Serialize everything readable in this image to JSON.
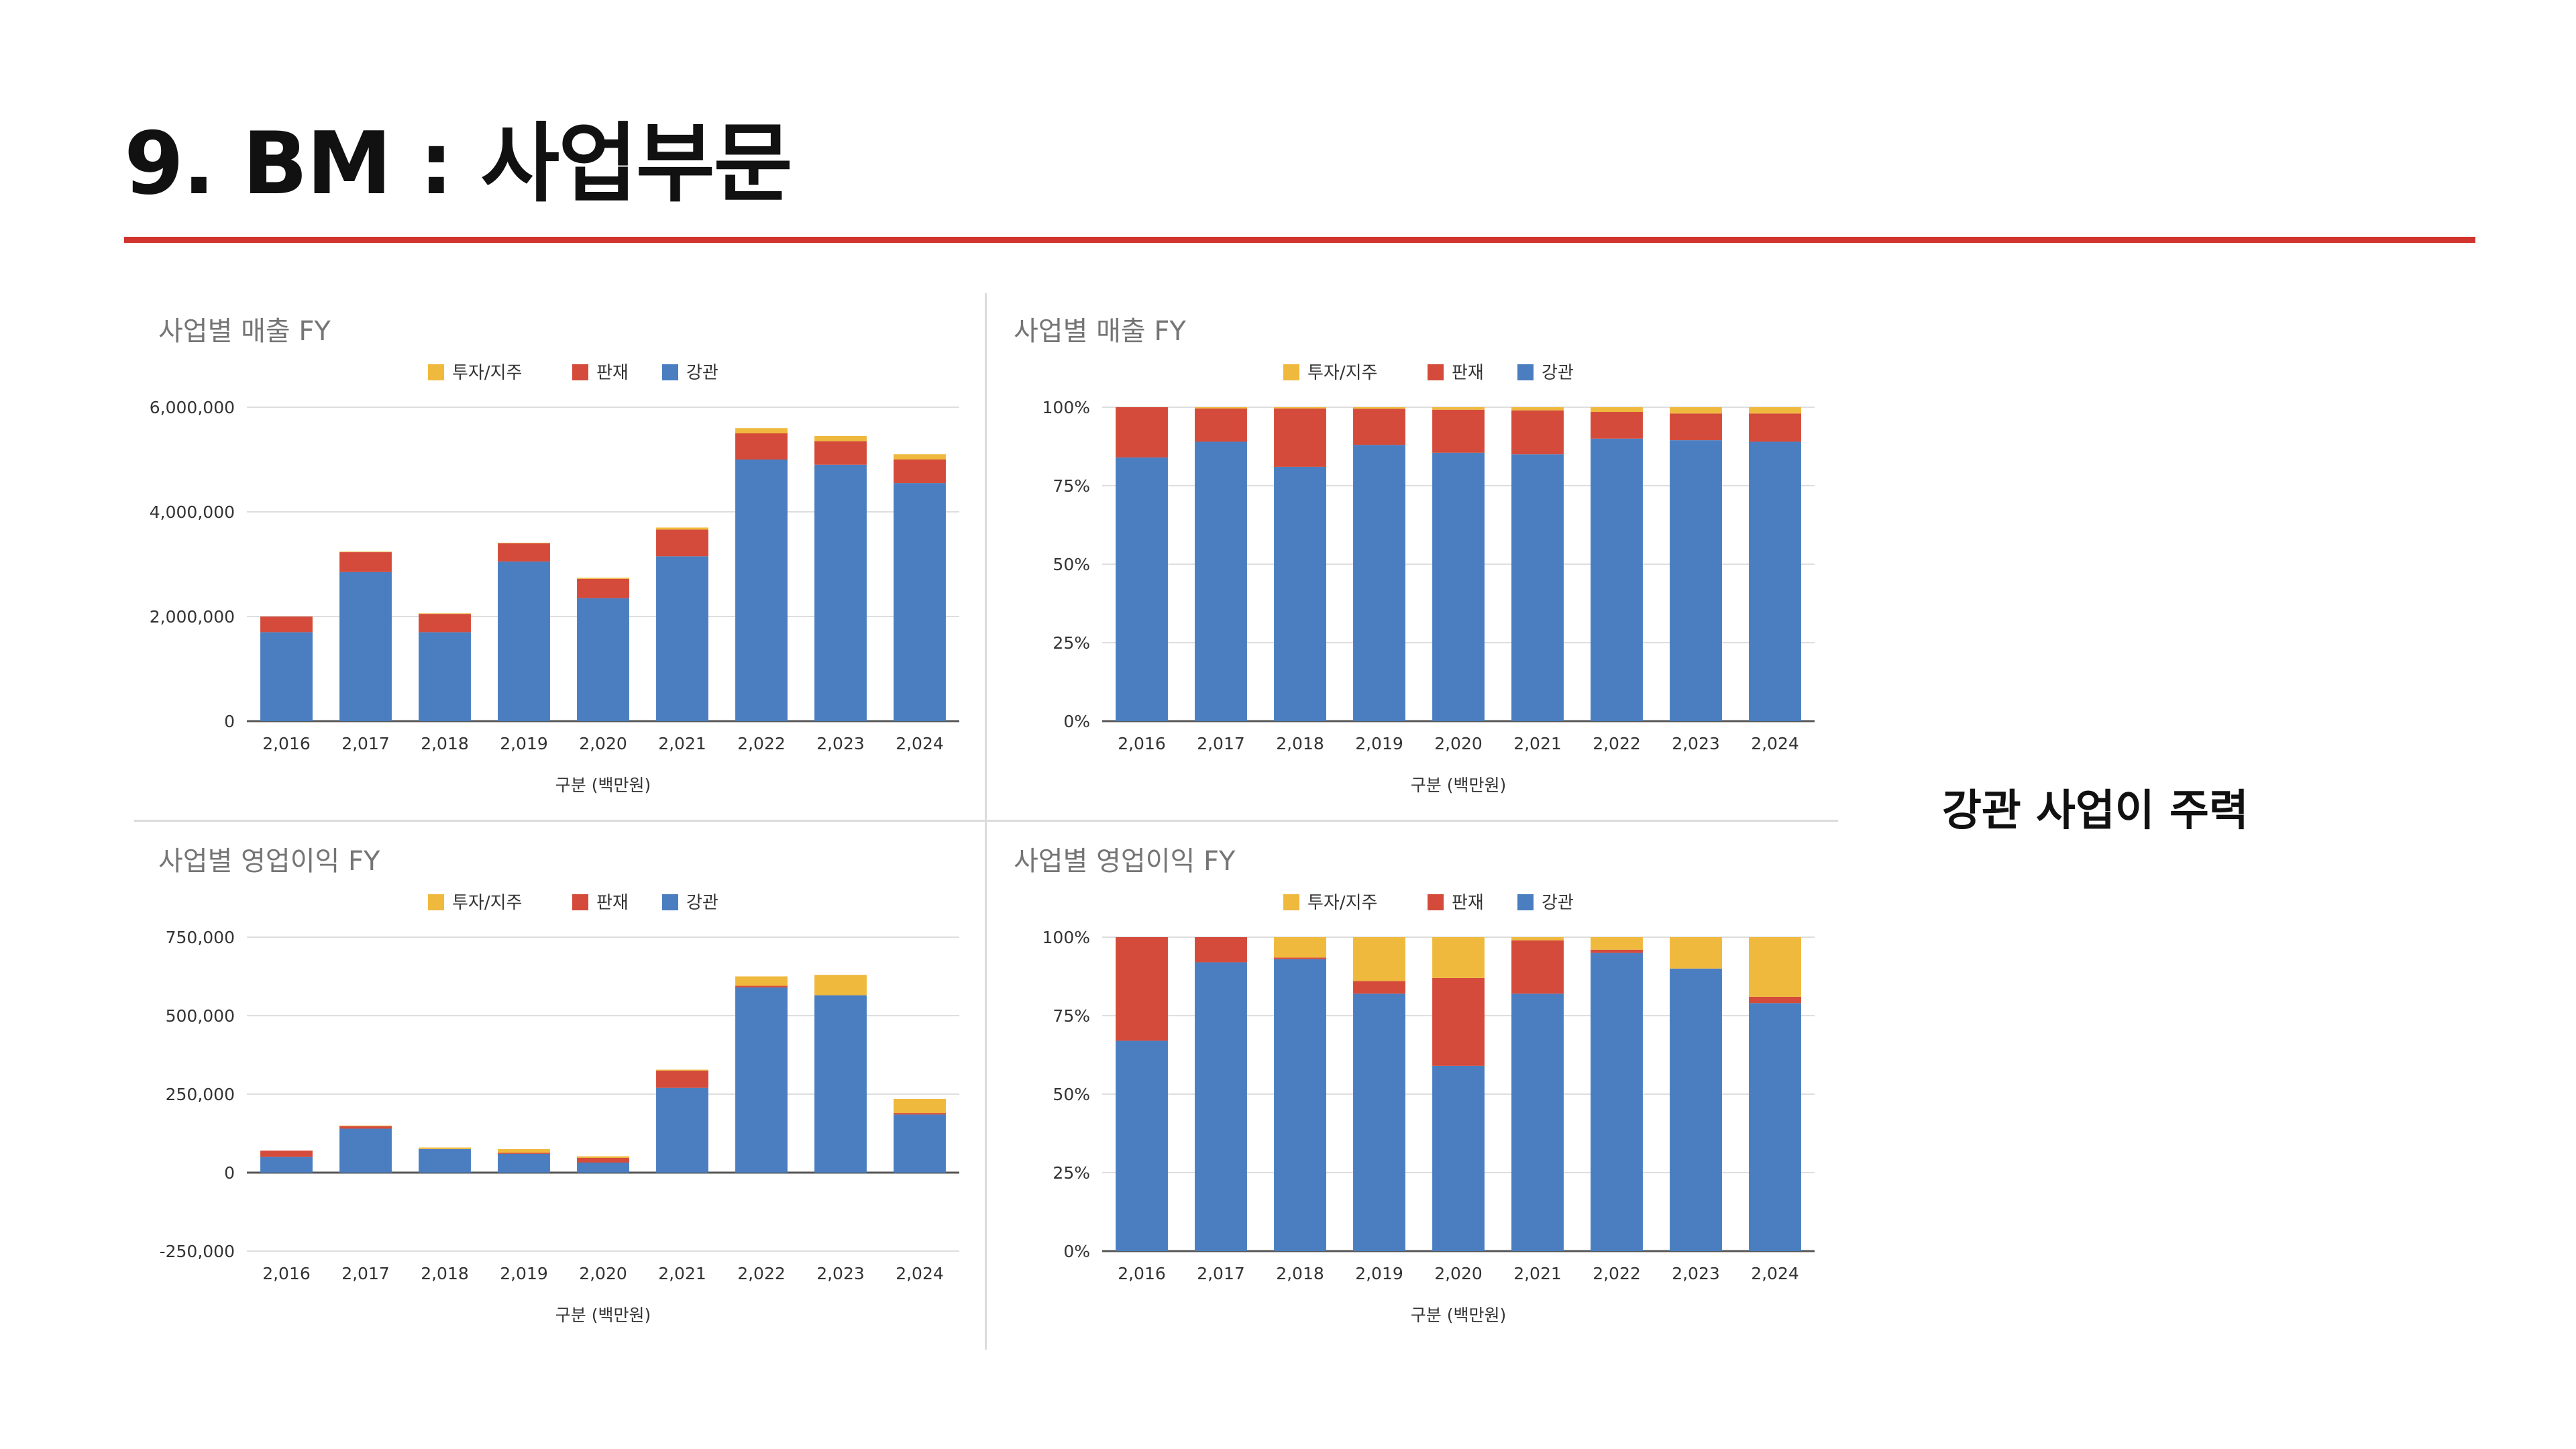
{
  "slide": {
    "title": "9. BM : 사업부문",
    "accent_color": "#d0342c",
    "side_note": "강관 사업이 주력"
  },
  "colors": {
    "강관": "#4a7ec1",
    "판재": "#d44b3b",
    "투자/지주": "#efb93e",
    "axis": "#555555",
    "grid": "#dedede",
    "title_text": "#757575"
  },
  "chart_data": [
    {
      "id": "sales-abs",
      "type": "bar",
      "stacked": true,
      "title": "사업별 매출 FY",
      "xlabel": "구분 (백만원)",
      "ylabel": "",
      "categories": [
        "2,016",
        "2,017",
        "2,018",
        "2,019",
        "2,020",
        "2,021",
        "2,022",
        "2,023",
        "2,024"
      ],
      "ylim": [
        0,
        6000000
      ],
      "yticks": [
        0,
        2000000,
        4000000,
        6000000
      ],
      "ytick_labels": [
        "0",
        "2,000,000",
        "4,000,000",
        "6,000,000"
      ],
      "legend": [
        "투자/지주",
        "판재",
        "강관"
      ],
      "legend_position": "top",
      "grid": true,
      "series": [
        {
          "name": "강관",
          "values": [
            1700000,
            2850000,
            1700000,
            3050000,
            2350000,
            3150000,
            5000000,
            4900000,
            4550000
          ]
        },
        {
          "name": "판재",
          "values": [
            300000,
            380000,
            350000,
            350000,
            370000,
            510000,
            500000,
            450000,
            450000
          ]
        },
        {
          "name": "투자/지주",
          "values": [
            0,
            10000,
            10000,
            10000,
            20000,
            40000,
            100000,
            100000,
            100000
          ]
        }
      ]
    },
    {
      "id": "sales-pct",
      "type": "bar",
      "stacked": true,
      "percent": true,
      "title": "사업별 매출 FY",
      "xlabel": "구분 (백만원)",
      "ylabel": "",
      "categories": [
        "2,016",
        "2,017",
        "2,018",
        "2,019",
        "2,020",
        "2,021",
        "2,022",
        "2,023",
        "2,024"
      ],
      "ylim": [
        0,
        100
      ],
      "yticks": [
        0,
        25,
        50,
        75,
        100
      ],
      "ytick_labels": [
        "0%",
        "25%",
        "50%",
        "75%",
        "100%"
      ],
      "legend": [
        "투자/지주",
        "판재",
        "강관"
      ],
      "legend_position": "top",
      "grid": true,
      "series": [
        {
          "name": "강관",
          "values": [
            84,
            89,
            81,
            88,
            85.5,
            85,
            90,
            89.5,
            89
          ]
        },
        {
          "name": "판재",
          "values": [
            16,
            10.6,
            18.6,
            11.5,
            13.7,
            14,
            8.5,
            8.5,
            9
          ]
        },
        {
          "name": "투자/지주",
          "values": [
            0,
            0.4,
            0.4,
            0.5,
            0.8,
            1,
            1.5,
            2,
            2
          ]
        }
      ]
    },
    {
      "id": "op-abs",
      "type": "bar",
      "stacked": true,
      "title": "사업별 영업이익 FY",
      "xlabel": "구분 (백만원)",
      "ylabel": "",
      "categories": [
        "2,016",
        "2,017",
        "2,018",
        "2,019",
        "2,020",
        "2,021",
        "2,022",
        "2,023",
        "2,024"
      ],
      "ylim": [
        -250000,
        750000
      ],
      "yticks": [
        -250000,
        0,
        250000,
        500000,
        750000
      ],
      "ytick_labels": [
        "-250,000",
        "0",
        "250,000",
        "500,000",
        "750,000"
      ],
      "legend": [
        "투자/지주",
        "판재",
        "강관"
      ],
      "legend_position": "top",
      "grid": true,
      "series": [
        {
          "name": "강관",
          "values": [
            50000,
            140000,
            75000,
            60000,
            32000,
            270000,
            590000,
            565000,
            185000
          ]
        },
        {
          "name": "판재",
          "values": [
            20000,
            8000,
            0,
            3000,
            15000,
            55000,
            5000,
            0,
            5000
          ]
        },
        {
          "name": "투자/지주",
          "values": [
            0,
            2000,
            5000,
            12000,
            5000,
            3000,
            30000,
            65000,
            45000
          ]
        }
      ]
    },
    {
      "id": "op-pct",
      "type": "bar",
      "stacked": true,
      "percent": true,
      "title": "사업별 영업이익 FY",
      "xlabel": "구분 (백만원)",
      "ylabel": "",
      "categories": [
        "2,016",
        "2,017",
        "2,018",
        "2,019",
        "2,020",
        "2,021",
        "2,022",
        "2,023",
        "2,024"
      ],
      "ylim": [
        0,
        100
      ],
      "yticks": [
        0,
        25,
        50,
        75,
        100
      ],
      "ytick_labels": [
        "0%",
        "25%",
        "50%",
        "75%",
        "100%"
      ],
      "legend": [
        "투자/지주",
        "판재",
        "강관"
      ],
      "legend_position": "top",
      "grid": true,
      "series": [
        {
          "name": "강관",
          "values": [
            67,
            92,
            93,
            82,
            59,
            82,
            95,
            90,
            79
          ]
        },
        {
          "name": "판재",
          "values": [
            33,
            8,
            0.5,
            4,
            28,
            17,
            1,
            0,
            2
          ]
        },
        {
          "name": "투자/지주",
          "values": [
            0,
            0,
            6.5,
            14,
            13,
            1,
            4,
            10,
            19
          ]
        }
      ]
    }
  ]
}
